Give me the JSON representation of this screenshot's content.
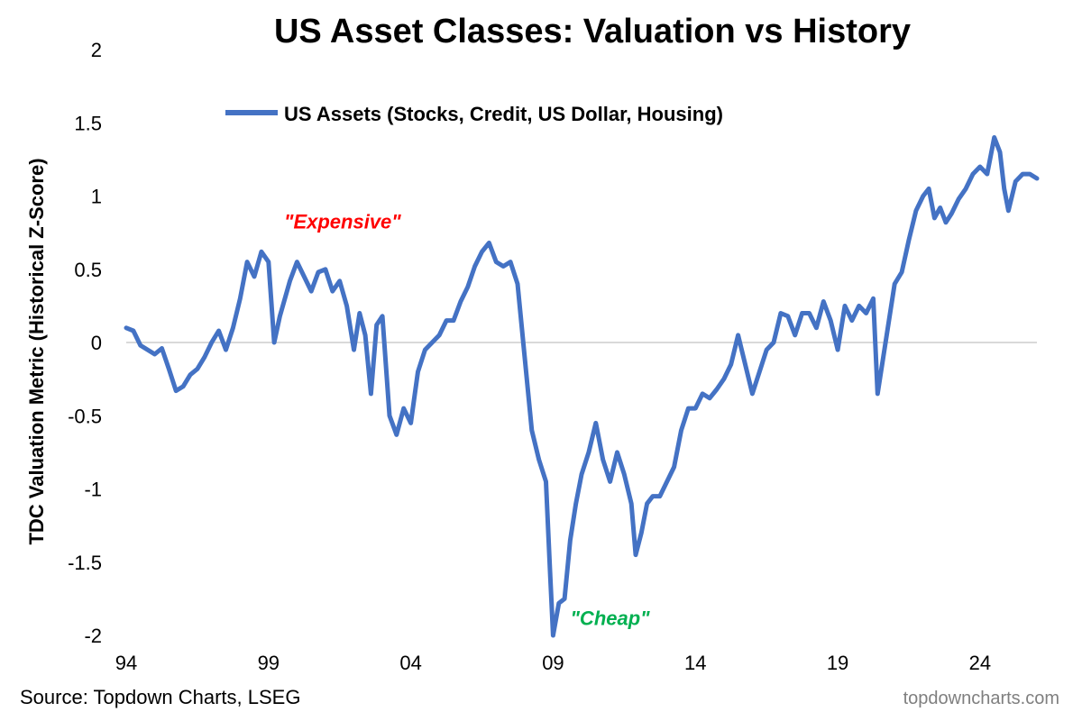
{
  "chart_data": {
    "type": "line",
    "title": "US Asset Classes: Valuation vs History",
    "ylabel": "TDC Valuation Metric (Historical Z-Score)",
    "xlabel": "",
    "ylim": [
      -2,
      2
    ],
    "xlim": [
      1994.0,
      2026.0
    ],
    "yticks": [
      2,
      1.5,
      1,
      0.5,
      0,
      -0.5,
      -1,
      -1.5,
      -2
    ],
    "ytick_labels": [
      "2",
      "1.5",
      "1",
      "0.5",
      "0",
      "-0.5",
      "-1",
      "-1.5",
      "-2"
    ],
    "xticks": [
      1994,
      1999,
      2004,
      2009,
      2014,
      2019,
      2024
    ],
    "xtick_labels": [
      "94",
      "99",
      "04",
      "09",
      "14",
      "19",
      "24"
    ],
    "grid": false,
    "zero_line": true,
    "legend_position": "top",
    "annotations": [
      {
        "text": "\"Expensive\"",
        "color": "#ff0000",
        "x": 2001.6,
        "y": 0.78
      },
      {
        "text": "\"Cheap\"",
        "color": "#00b050",
        "x": 2011.0,
        "y": -1.93
      }
    ],
    "series": [
      {
        "name": "US Assets (Stocks, Credit, US Dollar, Housing)",
        "color": "#4472c4",
        "points": [
          [
            1994.0,
            0.1
          ],
          [
            1994.25,
            0.08
          ],
          [
            1994.5,
            -0.02
          ],
          [
            1994.75,
            -0.05
          ],
          [
            1995.0,
            -0.08
          ],
          [
            1995.25,
            -0.04
          ],
          [
            1995.5,
            -0.18
          ],
          [
            1995.75,
            -0.33
          ],
          [
            1996.0,
            -0.3
          ],
          [
            1996.25,
            -0.22
          ],
          [
            1996.5,
            -0.18
          ],
          [
            1996.75,
            -0.1
          ],
          [
            1997.0,
            0.0
          ],
          [
            1997.25,
            0.08
          ],
          [
            1997.5,
            -0.05
          ],
          [
            1997.75,
            0.1
          ],
          [
            1998.0,
            0.3
          ],
          [
            1998.25,
            0.55
          ],
          [
            1998.5,
            0.45
          ],
          [
            1998.75,
            0.62
          ],
          [
            1999.0,
            0.55
          ],
          [
            1999.2,
            0.0
          ],
          [
            1999.4,
            0.18
          ],
          [
            1999.75,
            0.42
          ],
          [
            2000.0,
            0.55
          ],
          [
            2000.25,
            0.45
          ],
          [
            2000.5,
            0.35
          ],
          [
            2000.75,
            0.48
          ],
          [
            2001.0,
            0.5
          ],
          [
            2001.25,
            0.35
          ],
          [
            2001.5,
            0.42
          ],
          [
            2001.75,
            0.25
          ],
          [
            2002.0,
            -0.05
          ],
          [
            2002.2,
            0.2
          ],
          [
            2002.4,
            0.05
          ],
          [
            2002.6,
            -0.35
          ],
          [
            2002.8,
            0.12
          ],
          [
            2003.0,
            0.18
          ],
          [
            2003.25,
            -0.5
          ],
          [
            2003.5,
            -0.63
          ],
          [
            2003.75,
            -0.45
          ],
          [
            2004.0,
            -0.55
          ],
          [
            2004.25,
            -0.2
          ],
          [
            2004.5,
            -0.05
          ],
          [
            2004.75,
            0.0
          ],
          [
            2005.0,
            0.05
          ],
          [
            2005.25,
            0.15
          ],
          [
            2005.5,
            0.15
          ],
          [
            2005.75,
            0.28
          ],
          [
            2006.0,
            0.38
          ],
          [
            2006.25,
            0.52
          ],
          [
            2006.5,
            0.62
          ],
          [
            2006.75,
            0.68
          ],
          [
            2007.0,
            0.55
          ],
          [
            2007.25,
            0.52
          ],
          [
            2007.5,
            0.55
          ],
          [
            2007.75,
            0.4
          ],
          [
            2008.0,
            -0.1
          ],
          [
            2008.25,
            -0.6
          ],
          [
            2008.5,
            -0.8
          ],
          [
            2008.75,
            -0.95
          ],
          [
            2008.9,
            -1.6
          ],
          [
            2009.0,
            -2.0
          ],
          [
            2009.2,
            -1.78
          ],
          [
            2009.4,
            -1.75
          ],
          [
            2009.6,
            -1.35
          ],
          [
            2009.8,
            -1.1
          ],
          [
            2010.0,
            -0.9
          ],
          [
            2010.25,
            -0.75
          ],
          [
            2010.5,
            -0.55
          ],
          [
            2010.75,
            -0.8
          ],
          [
            2011.0,
            -0.95
          ],
          [
            2011.25,
            -0.75
          ],
          [
            2011.5,
            -0.9
          ],
          [
            2011.75,
            -1.1
          ],
          [
            2011.9,
            -1.45
          ],
          [
            2012.1,
            -1.3
          ],
          [
            2012.3,
            -1.1
          ],
          [
            2012.5,
            -1.05
          ],
          [
            2012.75,
            -1.05
          ],
          [
            2013.0,
            -0.95
          ],
          [
            2013.25,
            -0.85
          ],
          [
            2013.5,
            -0.6
          ],
          [
            2013.75,
            -0.45
          ],
          [
            2014.0,
            -0.45
          ],
          [
            2014.25,
            -0.35
          ],
          [
            2014.5,
            -0.38
          ],
          [
            2014.75,
            -0.32
          ],
          [
            2015.0,
            -0.25
          ],
          [
            2015.25,
            -0.15
          ],
          [
            2015.5,
            0.05
          ],
          [
            2015.75,
            -0.15
          ],
          [
            2016.0,
            -0.35
          ],
          [
            2016.25,
            -0.2
          ],
          [
            2016.5,
            -0.05
          ],
          [
            2016.75,
            0.0
          ],
          [
            2017.0,
            0.2
          ],
          [
            2017.25,
            0.18
          ],
          [
            2017.5,
            0.05
          ],
          [
            2017.75,
            0.2
          ],
          [
            2018.0,
            0.2
          ],
          [
            2018.25,
            0.1
          ],
          [
            2018.5,
            0.28
          ],
          [
            2018.75,
            0.15
          ],
          [
            2019.0,
            -0.05
          ],
          [
            2019.25,
            0.25
          ],
          [
            2019.5,
            0.15
          ],
          [
            2019.75,
            0.25
          ],
          [
            2020.0,
            0.2
          ],
          [
            2020.25,
            0.3
          ],
          [
            2020.4,
            -0.35
          ],
          [
            2020.6,
            -0.1
          ],
          [
            2020.8,
            0.15
          ],
          [
            2021.0,
            0.4
          ],
          [
            2021.25,
            0.48
          ],
          [
            2021.5,
            0.7
          ],
          [
            2021.75,
            0.9
          ],
          [
            2022.0,
            1.0
          ],
          [
            2022.2,
            1.05
          ],
          [
            2022.4,
            0.85
          ],
          [
            2022.6,
            0.92
          ],
          [
            2022.8,
            0.82
          ],
          [
            2023.0,
            0.88
          ],
          [
            2023.25,
            0.98
          ],
          [
            2023.5,
            1.05
          ],
          [
            2023.75,
            1.15
          ],
          [
            2024.0,
            1.2
          ],
          [
            2024.25,
            1.15
          ],
          [
            2024.5,
            1.4
          ],
          [
            2024.7,
            1.3
          ],
          [
            2024.85,
            1.05
          ],
          [
            2025.0,
            0.9
          ],
          [
            2025.25,
            1.1
          ],
          [
            2025.5,
            1.15
          ],
          [
            2025.75,
            1.15
          ],
          [
            2026.0,
            1.12
          ]
        ]
      }
    ]
  },
  "footer": {
    "source": "Source: Topdown Charts, LSEG",
    "brand": "topdowncharts.com"
  }
}
